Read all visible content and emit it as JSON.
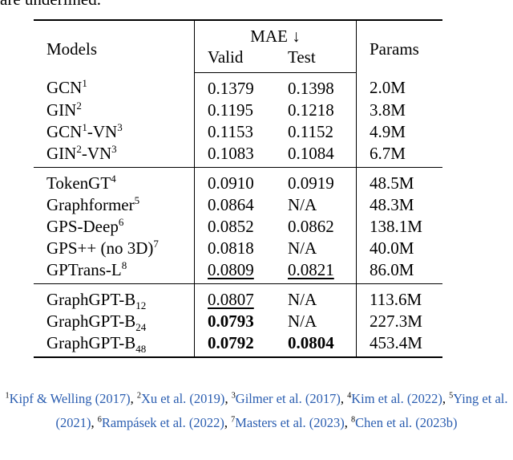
{
  "caption_fragment": "are underlined.",
  "table": {
    "header": {
      "models": "Models",
      "mae": "MAE ↓",
      "valid": "Valid",
      "test": "Test",
      "params": "Params"
    },
    "groups": [
      [
        {
          "model": [
            {
              "text": "GCN"
            },
            {
              "text": "1",
              "pos": "sup"
            }
          ],
          "valid": {
            "text": "0.1379"
          },
          "test": {
            "text": "0.1398"
          },
          "params": {
            "text": "2.0M"
          }
        },
        {
          "model": [
            {
              "text": "GIN"
            },
            {
              "text": "2",
              "pos": "sup"
            }
          ],
          "valid": {
            "text": "0.1195"
          },
          "test": {
            "text": "0.1218"
          },
          "params": {
            "text": "3.8M"
          }
        },
        {
          "model": [
            {
              "text": "GCN"
            },
            {
              "text": "1",
              "pos": "sup"
            },
            {
              "text": "-VN"
            },
            {
              "text": "3",
              "pos": "sup"
            }
          ],
          "valid": {
            "text": "0.1153"
          },
          "test": {
            "text": "0.1152"
          },
          "params": {
            "text": "4.9M"
          }
        },
        {
          "model": [
            {
              "text": "GIN"
            },
            {
              "text": "2",
              "pos": "sup"
            },
            {
              "text": "-VN"
            },
            {
              "text": "3",
              "pos": "sup"
            }
          ],
          "valid": {
            "text": "0.1083"
          },
          "test": {
            "text": "0.1084"
          },
          "params": {
            "text": "6.7M"
          }
        }
      ],
      [
        {
          "model": [
            {
              "text": "TokenGT"
            },
            {
              "text": "4",
              "pos": "sup"
            }
          ],
          "valid": {
            "text": "0.0910"
          },
          "test": {
            "text": "0.0919"
          },
          "params": {
            "text": "48.5M"
          }
        },
        {
          "model": [
            {
              "text": "Graphformer"
            },
            {
              "text": "5",
              "pos": "sup"
            }
          ],
          "valid": {
            "text": "0.0864"
          },
          "test": {
            "text": "N/A"
          },
          "params": {
            "text": "48.3M"
          }
        },
        {
          "model": [
            {
              "text": "GPS-Deep"
            },
            {
              "text": "6",
              "pos": "sup"
            }
          ],
          "valid": {
            "text": "0.0852"
          },
          "test": {
            "text": "0.0862"
          },
          "params": {
            "text": "138.1M"
          }
        },
        {
          "model": [
            {
              "text": "GPS++ (no 3D)"
            },
            {
              "text": "7",
              "pos": "sup"
            }
          ],
          "valid": {
            "text": "0.0818"
          },
          "test": {
            "text": "N/A"
          },
          "params": {
            "text": "40.0M"
          }
        },
        {
          "model": [
            {
              "text": "GPTrans-L"
            },
            {
              "text": "8",
              "pos": "sup"
            }
          ],
          "valid": {
            "text": "0.0809",
            "style": "underline"
          },
          "test": {
            "text": "0.0821",
            "style": "underline"
          },
          "params": {
            "text": "86.0M"
          }
        }
      ],
      [
        {
          "model": [
            {
              "text": "GraphGPT-B"
            },
            {
              "text": "12",
              "pos": "sub"
            }
          ],
          "valid": {
            "text": "0.0807",
            "style": "underline"
          },
          "test": {
            "text": "N/A"
          },
          "params": {
            "text": "113.6M"
          }
        },
        {
          "model": [
            {
              "text": "GraphGPT-B"
            },
            {
              "text": "24",
              "pos": "sub"
            }
          ],
          "valid": {
            "text": "0.0793",
            "style": "bold"
          },
          "test": {
            "text": "N/A"
          },
          "params": {
            "text": "227.3M"
          }
        },
        {
          "model": [
            {
              "text": "GraphGPT-B"
            },
            {
              "text": "48",
              "pos": "sub"
            }
          ],
          "valid": {
            "text": "0.0792",
            "style": "bold"
          },
          "test": {
            "text": "0.0804",
            "style": "bold"
          },
          "params": {
            "text": "453.4M"
          }
        }
      ]
    ]
  },
  "footnote": [
    {
      "text": "1",
      "pos": "sup"
    },
    {
      "text": "Kipf & Welling (2017)",
      "link": true
    },
    {
      "text": ", "
    },
    {
      "text": "2",
      "pos": "sup"
    },
    {
      "text": "Xu et al. (2019)",
      "link": true
    },
    {
      "text": ", "
    },
    {
      "text": "3",
      "pos": "sup"
    },
    {
      "text": "Gilmer et al. (2017)",
      "link": true
    },
    {
      "text": ", "
    },
    {
      "text": "4",
      "pos": "sup"
    },
    {
      "text": "Kim et al. (2022)",
      "link": true
    },
    {
      "text": ", "
    },
    {
      "text": "5",
      "pos": "sup"
    },
    {
      "text": "Ying et al. (2021)",
      "link": true
    },
    {
      "text": ", "
    },
    {
      "text": "6",
      "pos": "sup"
    },
    {
      "text": "Rampásek et al. (2022)",
      "link": true
    },
    {
      "text": ", "
    },
    {
      "text": "7",
      "pos": "sup"
    },
    {
      "text": "Masters et al. (2023)",
      "link": true
    },
    {
      "text": ", "
    },
    {
      "text": "8",
      "pos": "sup"
    },
    {
      "text": "Chen et al. (2023b)",
      "link": true
    }
  ]
}
